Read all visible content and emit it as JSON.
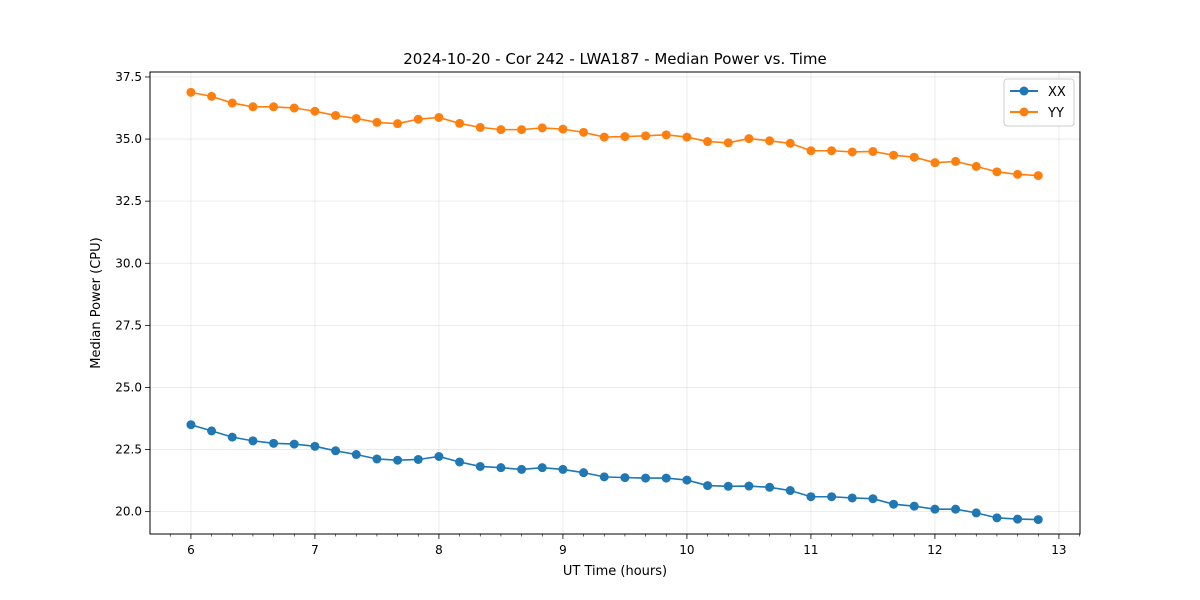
{
  "chart_data": {
    "type": "line",
    "title": "2024-10-20 - Cor 242 - LWA187 - Median Power vs. Time",
    "xlabel": "UT Time (hours)",
    "ylabel": "Median Power (CPU)",
    "xlim": [
      5.67,
      13.17
    ],
    "ylim": [
      19.1,
      37.7
    ],
    "xticks": [
      6,
      7,
      8,
      9,
      10,
      11,
      12,
      13
    ],
    "xtick_labels": [
      "6",
      "7",
      "8",
      "9",
      "10",
      "11",
      "12",
      "13"
    ],
    "yticks": [
      20.0,
      22.5,
      25.0,
      27.5,
      30.0,
      32.5,
      35.0,
      37.5
    ],
    "ytick_labels": [
      "20.0",
      "22.5",
      "25.0",
      "27.5",
      "30.0",
      "32.5",
      "35.0",
      "37.5"
    ],
    "grid": true,
    "legend_position": "top-right",
    "x": [
      6.0,
      6.1667,
      6.3333,
      6.5,
      6.6667,
      6.8333,
      7.0,
      7.1667,
      7.3333,
      7.5,
      7.6667,
      7.8333,
      8.0,
      8.1667,
      8.3333,
      8.5,
      8.6667,
      8.8333,
      9.0,
      9.1667,
      9.3333,
      9.5,
      9.6667,
      9.8333,
      10.0,
      10.1667,
      10.3333,
      10.5,
      10.6667,
      10.8333,
      11.0,
      11.1667,
      11.3333,
      11.5,
      11.6667,
      11.8333,
      12.0,
      12.1667,
      12.3333,
      12.5,
      12.6667,
      12.8333
    ],
    "series": [
      {
        "name": "XX",
        "color": "#1f77b4",
        "values": [
          23.5,
          23.25,
          23.0,
          22.85,
          22.75,
          22.72,
          22.63,
          22.45,
          22.3,
          22.12,
          22.07,
          22.1,
          22.22,
          22.0,
          21.82,
          21.77,
          21.7,
          21.77,
          21.7,
          21.57,
          21.4,
          21.37,
          21.35,
          21.35,
          21.27,
          21.05,
          21.02,
          21.03,
          20.98,
          20.85,
          20.6,
          20.6,
          20.55,
          20.52,
          20.3,
          20.22,
          20.1,
          20.1,
          19.95,
          19.75,
          19.7,
          19.68
        ]
      },
      {
        "name": "YY",
        "color": "#ff7f0e",
        "values": [
          36.88,
          36.72,
          36.45,
          36.3,
          36.3,
          36.25,
          36.12,
          35.95,
          35.83,
          35.67,
          35.62,
          35.8,
          35.87,
          35.63,
          35.47,
          35.38,
          35.38,
          35.45,
          35.4,
          35.27,
          35.08,
          35.1,
          35.13,
          35.17,
          35.08,
          34.9,
          34.85,
          35.02,
          34.93,
          34.83,
          34.53,
          34.53,
          34.48,
          34.5,
          34.35,
          34.27,
          34.05,
          34.1,
          33.9,
          33.68,
          33.58,
          33.53
        ]
      }
    ]
  }
}
